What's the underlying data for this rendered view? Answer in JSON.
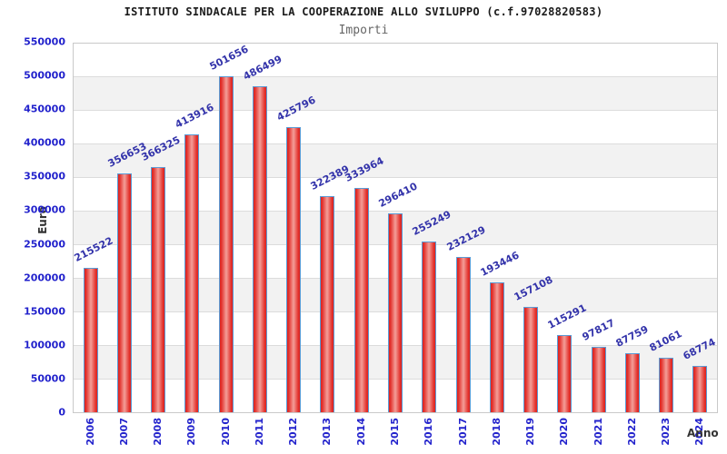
{
  "header": {
    "title": "ISTITUTO SINDACALE PER LA COOPERAZIONE ALLO SVILUPPO (c.f.97028820583)",
    "subtitle": "Importi"
  },
  "axes": {
    "y_title": "Euro",
    "x_title": "Anno"
  },
  "chart_data": {
    "type": "bar",
    "title": "ISTITUTO SINDACALE PER LA COOPERAZIONE ALLO SVILUPPO (c.f.97028820583)",
    "subtitle": "Importi",
    "xlabel": "Anno",
    "ylabel": "Euro",
    "categories": [
      "2006",
      "2007",
      "2008",
      "2009",
      "2010",
      "2011",
      "2012",
      "2013",
      "2014",
      "2015",
      "2016",
      "2017",
      "2018",
      "2019",
      "2020",
      "2021",
      "2022",
      "2023",
      "2024"
    ],
    "values": [
      215522,
      356653,
      366325,
      413916,
      501656,
      486499,
      425796,
      322389,
      333964,
      296410,
      255249,
      232129,
      193446,
      157108,
      115291,
      97817,
      87759,
      81061,
      68774
    ],
    "ylim": [
      0,
      550000
    ],
    "ytick_step": 50000,
    "grid": "horizontal-bands-alternating",
    "legend": "none",
    "value_labels_rotated": true
  },
  "colors": {
    "bar_edge": "#dd2420",
    "bar_center": "#f49e98",
    "bar_border": "#5b9bd5",
    "tick_label": "#2222cc",
    "value_label": "#3333aa",
    "band_gray": "#f2f2f2",
    "gridline": "#dcdcdc",
    "plot_border": "#c9c9c9",
    "title": "#1a1a1a",
    "subtitle": "#666666",
    "axis_title": "#333333"
  }
}
